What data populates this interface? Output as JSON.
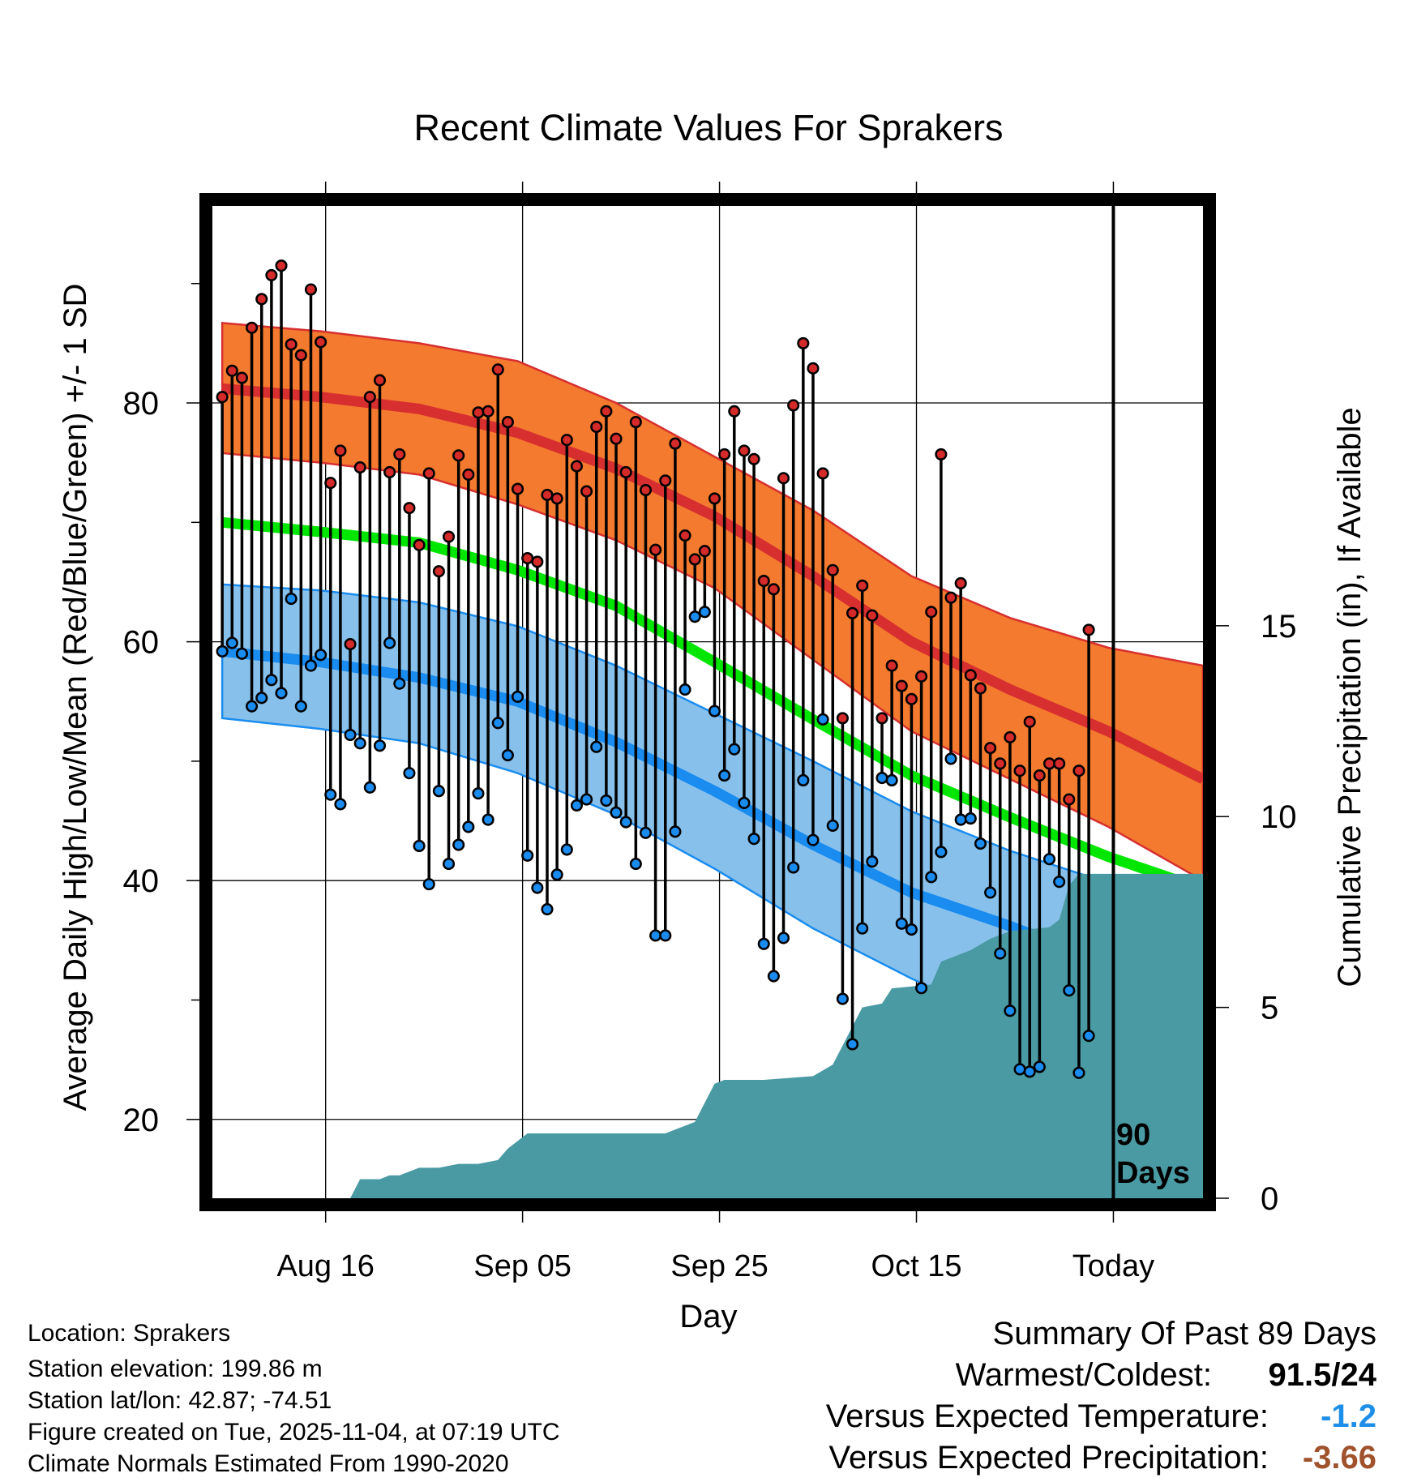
{
  "chart_data": {
    "type": "line",
    "title": "Recent Climate Values For Sprakers",
    "xlabel": "Day",
    "ylabel": "Average Daily High/Low/Mean (Red/Blue/Green) +/- 1 SD",
    "y2label": "Cumulative Precipitation (in), If Available",
    "ylim": [
      13.4,
      96.5
    ],
    "y2lim": [
      0,
      26
    ],
    "yticks": [
      20,
      40,
      60,
      80
    ],
    "y2ticks": [
      0,
      5,
      10,
      15
    ],
    "xticks": [
      {
        "day": 10.5,
        "label": "Aug 16"
      },
      {
        "day": 30.5,
        "label": "Sep 05"
      },
      {
        "day": 50.5,
        "label": "Sep 25"
      },
      {
        "day": 70.5,
        "label": "Oct 15"
      },
      {
        "day": 90.5,
        "label": "Today"
      }
    ],
    "xlim": [
      -1,
      99.6
    ],
    "grid": true,
    "today_marker": {
      "day": 90.5,
      "label_line1": "90",
      "label_line2": "Days"
    },
    "normal_days": [
      0,
      10,
      20,
      30,
      40,
      50,
      60,
      70,
      80,
      90,
      99.6
    ],
    "normal_high_mean": [
      81.2,
      80.5,
      79.5,
      77.5,
      74.5,
      70.5,
      65.5,
      60.0,
      56.0,
      52.5,
      48.5
    ],
    "normal_high_sd_upper": [
      86.7,
      86.0,
      85.0,
      83.5,
      80.0,
      75.5,
      71.0,
      65.5,
      62.0,
      59.5,
      58.0
    ],
    "normal_high_sd_lower": [
      75.8,
      75.0,
      74.0,
      71.5,
      68.5,
      64.5,
      58.5,
      52.5,
      48.5,
      44.5,
      40.0
    ],
    "normal_mean": [
      70.0,
      69.2,
      68.3,
      66.0,
      63.0,
      58.3,
      53.5,
      48.8,
      45.3,
      42.0,
      39.3
    ],
    "normal_low_mean": [
      59.2,
      58.3,
      57.0,
      55.0,
      51.6,
      47.5,
      43.0,
      39.0,
      36.2,
      33.0,
      30.0
    ],
    "normal_low_sd_upper": [
      64.8,
      64.3,
      63.3,
      61.3,
      58.0,
      54.0,
      50.0,
      45.8,
      42.5,
      39.8,
      38.5
    ],
    "normal_low_sd_lower": [
      53.6,
      52.7,
      51.5,
      49.0,
      45.5,
      41.0,
      36.0,
      31.8,
      28.0,
      23.5,
      21.5
    ],
    "observed_days": [
      0,
      1,
      2,
      3,
      4,
      5,
      6,
      7,
      8,
      9,
      10,
      11,
      12,
      13,
      14,
      15,
      16,
      17,
      18,
      19,
      20,
      21,
      22,
      23,
      24,
      25,
      26,
      27,
      28,
      29,
      30,
      31,
      32,
      33,
      34,
      35,
      36,
      37,
      38,
      39,
      40,
      41,
      42,
      43,
      44,
      45,
      46,
      47,
      48,
      49,
      50,
      51,
      52,
      53,
      54,
      55,
      56,
      57,
      58,
      59,
      60,
      61,
      62,
      63,
      64,
      65,
      66,
      67,
      68,
      69,
      70,
      71,
      72,
      73,
      74,
      75,
      76,
      77,
      78,
      79,
      80,
      81,
      82,
      83,
      84,
      85,
      86,
      87,
      88
    ],
    "observed_high": [
      80.5,
      82.7,
      82.1,
      86.3,
      88.7,
      90.7,
      91.5,
      84.9,
      84.0,
      89.5,
      85.1,
      73.3,
      76.0,
      59.8,
      74.6,
      80.5,
      81.9,
      74.2,
      75.7,
      71.2,
      68.1,
      74.1,
      65.9,
      68.8,
      75.6,
      74.0,
      79.2,
      79.3,
      82.8,
      78.4,
      72.8,
      67.0,
      66.7,
      72.3,
      72.0,
      76.9,
      74.7,
      72.6,
      78.0,
      79.3,
      77.0,
      74.2,
      78.4,
      72.7,
      67.7,
      73.5,
      76.6,
      68.9,
      66.9,
      67.6,
      72.0,
      75.7,
      79.3,
      76.0,
      75.3,
      65.1,
      64.4,
      73.7,
      79.8,
      85.0,
      82.9,
      74.1,
      66.0,
      53.6,
      62.4,
      64.7,
      62.2,
      53.6,
      58.0,
      56.3,
      55.2,
      57.1,
      62.5,
      75.7,
      63.7,
      64.9,
      57.2,
      56.1,
      51.1,
      49.8,
      52.0,
      49.2,
      53.3,
      48.8,
      49.8,
      49.8,
      46.8,
      49.2,
      61.0
    ],
    "observed_low": [
      59.2,
      59.9,
      59.0,
      54.6,
      55.3,
      56.8,
      55.7,
      63.6,
      54.6,
      58.0,
      58.9,
      47.2,
      46.4,
      52.2,
      51.5,
      47.8,
      51.3,
      59.9,
      56.5,
      49.0,
      42.9,
      39.7,
      47.5,
      41.4,
      43.0,
      44.5,
      47.3,
      45.1,
      53.2,
      50.5,
      55.4,
      42.1,
      39.4,
      37.6,
      40.5,
      42.6,
      46.3,
      46.8,
      51.2,
      46.7,
      45.7,
      44.9,
      41.4,
      44.0,
      35.4,
      35.4,
      44.1,
      56.0,
      62.1,
      62.5,
      54.2,
      48.8,
      51.0,
      46.5,
      43.5,
      34.7,
      32.0,
      35.2,
      41.1,
      48.4,
      43.4,
      53.5,
      44.6,
      30.1,
      26.3,
      36.0,
      41.6,
      48.6,
      48.4,
      36.4,
      35.9,
      31.0,
      40.3,
      42.4,
      50.2,
      45.1,
      45.2,
      43.1,
      39.0,
      33.9,
      29.1,
      24.2,
      24.0,
      24.4,
      41.8,
      39.9,
      30.8,
      23.9,
      27.0
    ],
    "precip_days": [
      0,
      13,
      14,
      16,
      17,
      18,
      20,
      22,
      24,
      26,
      28,
      29,
      30,
      31,
      35,
      40,
      45,
      48,
      49,
      50,
      51,
      55,
      60,
      62,
      63,
      65,
      67,
      68,
      72,
      73,
      75,
      76,
      78,
      80,
      84,
      85,
      86,
      87,
      88,
      99.6
    ],
    "precip_cumulative": [
      0,
      0,
      0.5,
      0.5,
      0.6,
      0.6,
      0.8,
      0.8,
      0.9,
      0.9,
      1.0,
      1.3,
      1.5,
      1.7,
      1.7,
      1.7,
      1.7,
      2.0,
      2.5,
      3.0,
      3.1,
      3.1,
      3.2,
      3.5,
      4.0,
      5.0,
      5.1,
      5.5,
      5.6,
      6.2,
      6.4,
      6.5,
      6.8,
      7.0,
      7.1,
      7.3,
      8.2,
      8.5,
      8.5,
      8.5
    ]
  },
  "location_line": "Location: Sprakers",
  "elevation_line": "Station elevation: 199.86 m",
  "latlon_line": "Station lat/lon: 42.87; -74.51",
  "created_line": "Figure created on Tue, 2025-11-04, at 07:19 UTC",
  "normals_line": "Climate Normals Estimated From 1990-2020",
  "summary": {
    "title": "Summary Of Past 89 Days",
    "warmest_label": "Warmest/Coldest:",
    "warmest_value": "91.5/24",
    "temp_label": "Versus Expected Temperature:",
    "temp_value": "-1.2",
    "temp_color": "#1e8fe8",
    "precip_label": "Versus Expected Precipitation:",
    "precip_value": "-3.66",
    "precip_color": "#a0522d"
  },
  "colors": {
    "high_band": "#f37a2f",
    "high_line": "#d72f2f",
    "mean_line": "#00e600",
    "low_band": "#87c1eb",
    "low_line": "#1a8cf0",
    "precip": "#4a9aa4",
    "high_dot": "#d42a2a",
    "low_dot": "#1a8cf0"
  }
}
